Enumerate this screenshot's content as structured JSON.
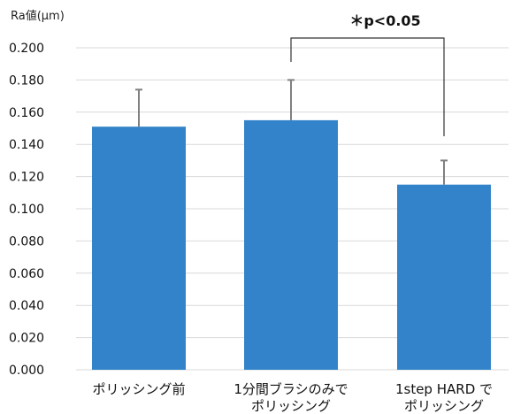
{
  "chart_data": {
    "type": "bar",
    "y_unit_label": "Ra値(μm)",
    "categories": [
      [
        "ポリッシング前"
      ],
      [
        "1分間ブラシのみで",
        "ポリッシング"
      ],
      [
        "1step HARD で",
        "ポリッシング"
      ]
    ],
    "values": [
      0.151,
      0.155,
      0.115
    ],
    "errors": [
      0.023,
      0.025,
      0.015
    ],
    "ylim": [
      0,
      0.2
    ],
    "yticks": [
      "0.000",
      "0.020",
      "0.040",
      "0.060",
      "0.080",
      "0.100",
      "0.120",
      "0.140",
      "0.160",
      "0.180",
      "0.200"
    ],
    "grid": true,
    "annotation": {
      "text": "＊p<0.05",
      "between_categories": [
        1,
        2
      ]
    },
    "colors": {
      "bar": "#3283c9",
      "grid": "#d9d9d9",
      "error_bar": "#808080",
      "bracket": "#333333"
    }
  }
}
